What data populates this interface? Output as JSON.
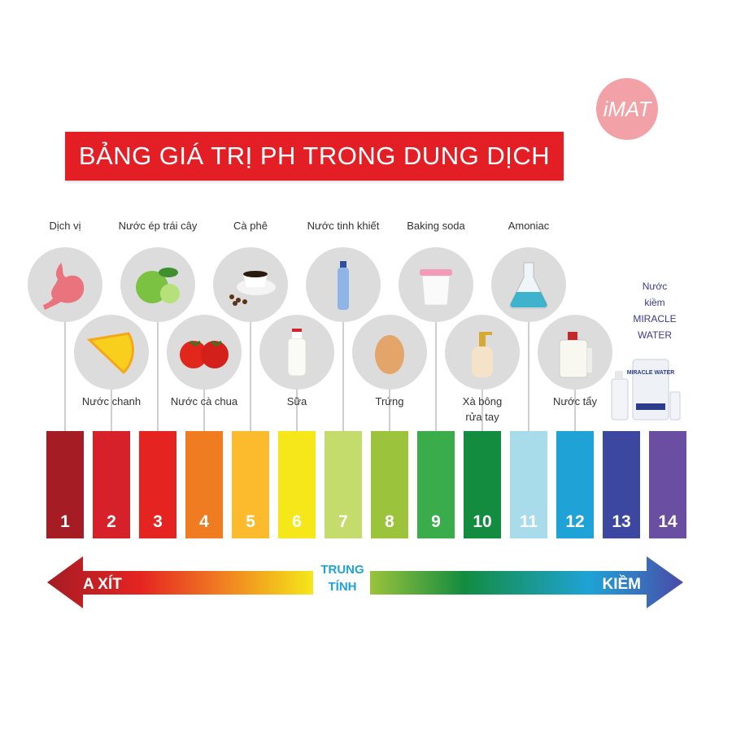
{
  "title": "BẢNG GIÁ TRỊ PH TRONG DUNG DỊCH",
  "logo": "iMAT",
  "top_items": [
    {
      "label": "Dịch vị",
      "icon": "stomach-icon",
      "ph": 1
    },
    {
      "label": "Nước ép trái cây",
      "icon": "apple-icon",
      "ph": 3
    },
    {
      "label": "Cà phê",
      "icon": "coffee-cup-icon",
      "ph": 5
    },
    {
      "label": "Nước tinh khiết",
      "icon": "water-bottle-icon",
      "ph": 7
    },
    {
      "label": "Baking soda",
      "icon": "baking-soda-jar-icon",
      "ph": 9
    },
    {
      "label": "Amoniac",
      "icon": "flask-icon",
      "ph": 11
    }
  ],
  "bottom_items": [
    {
      "label": "Nước chanh",
      "icon": "lemon-icon",
      "ph": 2
    },
    {
      "label": "Nước cà chua",
      "icon": "tomato-icon",
      "ph": 4
    },
    {
      "label": "Sữa",
      "icon": "milk-bottle-icon",
      "ph": 6
    },
    {
      "label": "Trứng",
      "icon": "egg-icon",
      "ph": 8
    },
    {
      "label": "Xà bông rửa tay",
      "icon": "soap-bottle-icon",
      "ph": 10
    },
    {
      "label": "Nước tẩy",
      "icon": "bleach-jug-icon",
      "ph": 12
    }
  ],
  "miracle": {
    "line1": "Nước",
    "line2": "kiềm",
    "line3": "MIRACLE",
    "line4": "WATER",
    "product_label": "MIRACLE WATER"
  },
  "scale": [
    {
      "value": "1",
      "color": "#a51c24"
    },
    {
      "value": "2",
      "color": "#d6202a"
    },
    {
      "value": "3",
      "color": "#e52421"
    },
    {
      "value": "4",
      "color": "#f07c22"
    },
    {
      "value": "5",
      "color": "#fbbb2c"
    },
    {
      "value": "6",
      "color": "#f5e71a"
    },
    {
      "value": "7",
      "color": "#c3dc6c"
    },
    {
      "value": "8",
      "color": "#9bc33c"
    },
    {
      "value": "9",
      "color": "#3aac4a"
    },
    {
      "value": "10",
      "color": "#138c40"
    },
    {
      "value": "11",
      "color": "#a8dcea"
    },
    {
      "value": "12",
      "color": "#1fa3d6"
    },
    {
      "value": "13",
      "color": "#3c48a0"
    },
    {
      "value": "14",
      "color": "#6a4ea2"
    }
  ],
  "arrow": {
    "acid": "A XÍT",
    "neutral_line1": "TRUNG",
    "neutral_line2": "TÍNH",
    "base": "KIỀM"
  },
  "colors": {
    "banner": "#e31e25",
    "logo": "#f2a1a6",
    "neutral_text": "#1fa3d6"
  }
}
